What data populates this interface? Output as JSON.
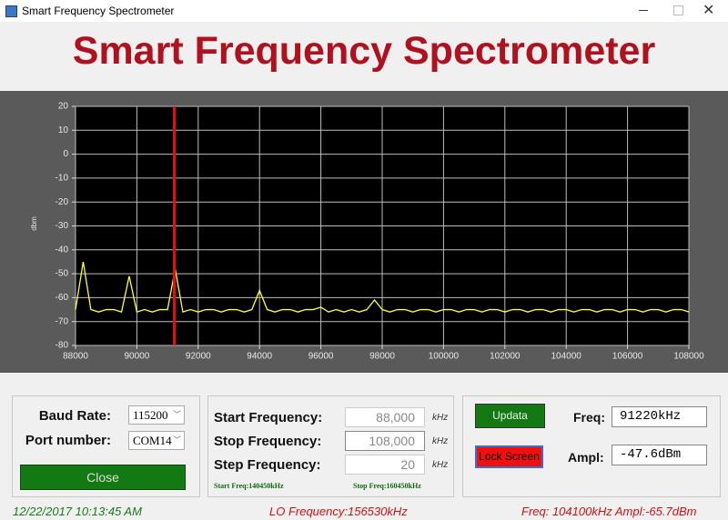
{
  "window": {
    "title": "Smart Frequency Spectrometer"
  },
  "header": {
    "title": "Smart Frequency Spectrometer"
  },
  "chart_data": {
    "type": "line",
    "y_label": "dbm",
    "x": [
      88000,
      88250,
      88500,
      88750,
      89000,
      89250,
      89500,
      89750,
      90000,
      90250,
      90500,
      90750,
      91000,
      91250,
      91500,
      91750,
      92000,
      92250,
      92500,
      92750,
      93000,
      93250,
      93500,
      93750,
      94000,
      94250,
      94500,
      94750,
      95000,
      95250,
      95500,
      95750,
      96000,
      96250,
      96500,
      96750,
      97000,
      97250,
      97500,
      97750,
      98000,
      98250,
      98500,
      98750,
      99000,
      99250,
      99500,
      99750,
      100000,
      100250,
      100500,
      100750,
      101000,
      101250,
      101500,
      101750,
      102000,
      102250,
      102500,
      102750,
      103000,
      103250,
      103500,
      103750,
      104000,
      104250,
      104500,
      104750,
      105000,
      105250,
      105500,
      105750,
      106000,
      106250,
      106500,
      106750,
      107000,
      107250,
      107500,
      107750,
      108000
    ],
    "series": [
      {
        "color": "#ffff33",
        "values": [
          -65,
          -45,
          -65,
          -66,
          -65,
          -65,
          -66,
          -51,
          -66,
          -65,
          -66,
          -65,
          -65,
          -48,
          -66,
          -65,
          -66,
          -65,
          -65,
          -66,
          -65,
          -65,
          -66,
          -65,
          -57,
          -65,
          -66,
          -65,
          -65,
          -66,
          -65,
          -65,
          -64,
          -66,
          -65,
          -66,
          -65,
          -66,
          -65,
          -61,
          -65,
          -66,
          -65,
          -65,
          -66,
          -65,
          -65,
          -66,
          -65,
          -65,
          -66,
          -65,
          -65,
          -66,
          -65,
          -65,
          -66,
          -65,
          -65,
          -66,
          -65,
          -65,
          -66,
          -65,
          -65,
          -66,
          -65,
          -65,
          -66,
          -65,
          -65,
          -66,
          -65,
          -65,
          -66,
          -65,
          -65,
          -66,
          -65,
          -65,
          -66
        ]
      }
    ],
    "marker_x": 91220,
    "marker_color": "#e01010",
    "xlim": [
      88000,
      108000
    ],
    "xticks": [
      88000,
      90000,
      92000,
      94000,
      96000,
      98000,
      100000,
      102000,
      104000,
      106000,
      108000
    ],
    "ylim": [
      -80,
      20
    ],
    "yticks": [
      20,
      10,
      0,
      -10,
      -20,
      -30,
      -40,
      -50,
      -60,
      -70,
      -80
    ],
    "grid": true
  },
  "serial": {
    "baud_label": "Baud Rate:",
    "baud_value": "115200",
    "port_label": "Port number:",
    "port_value": "COM14",
    "close_button": "Close"
  },
  "sweep": {
    "start_label": "Start Frequency:",
    "start_value": "88,000",
    "start_unit": "kHz",
    "stop_label": "Stop Frequency:",
    "stop_value": "108,000",
    "stop_unit": "kHz",
    "step_label": "Step Frequency:",
    "step_value": "20",
    "step_unit": "kHz",
    "start_freq": "Start Freq:140450kHz",
    "stop_freq": "Stop Freq:160450kHz"
  },
  "measure": {
    "update_button": "Updata",
    "lock_button": "Lock Screen",
    "freq_label": "Freq:",
    "freq_value": "91220kHz",
    "ampl_label": "Ampl:",
    "ampl_value": "-47.6dBm"
  },
  "status": {
    "datetime": "12/22/2017 10:13:45 AM",
    "lo": "LO Frequency:156530kHz",
    "readout": "Freq: 104100kHz Ampl:-65.7dBm"
  }
}
